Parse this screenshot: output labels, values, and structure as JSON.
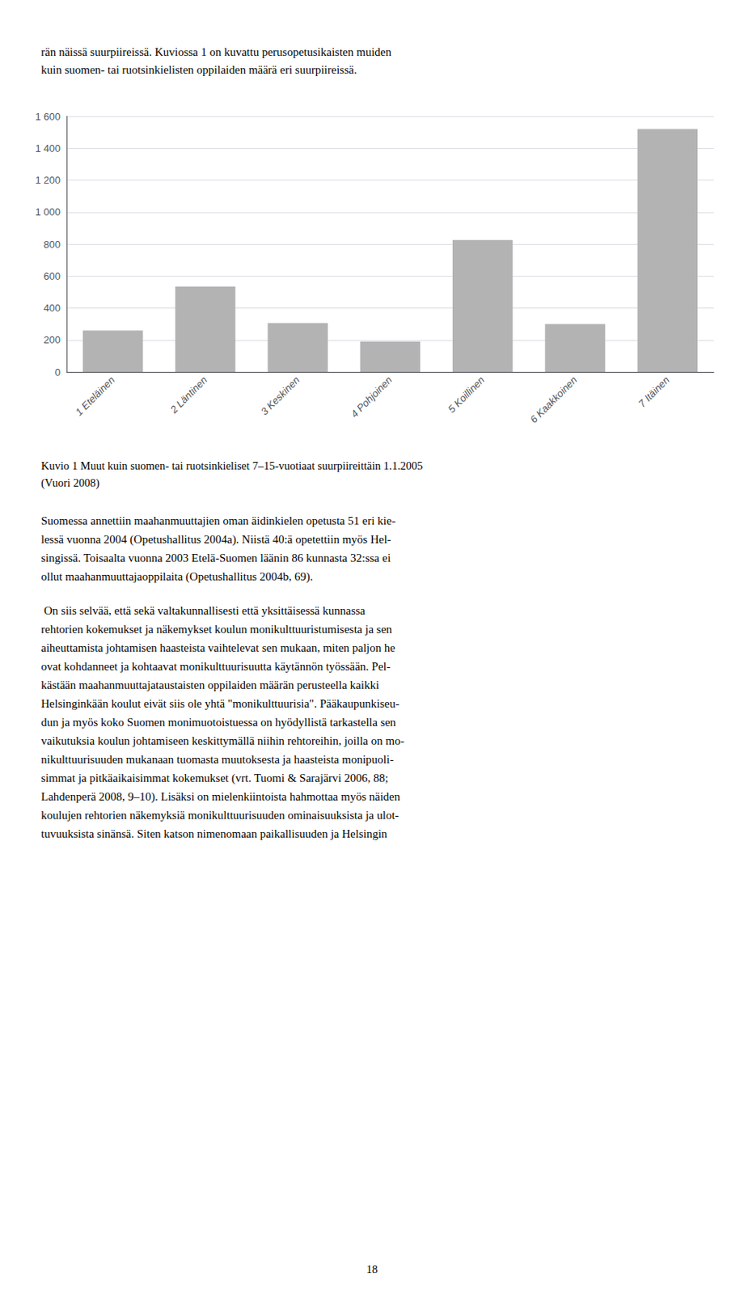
{
  "chart_data": {
    "type": "bar",
    "categories": [
      "1 Eteläinen",
      "2 Läntinen",
      "3 Keskinen",
      "4 Pohjoinen",
      "5 Koillinen",
      "6 Kaakkoinen",
      "7 Itäinen"
    ],
    "values": [
      260,
      535,
      305,
      190,
      825,
      300,
      1520
    ],
    "color": "#b3b3b3",
    "ylim": [
      0,
      1600
    ],
    "yticks": [
      0,
      200,
      400,
      600,
      800,
      {
        "value": 1000,
        "label": "1 000"
      },
      {
        "value": 1200,
        "label": "1 200"
      },
      {
        "value": 1400,
        "label": "1 400"
      },
      {
        "value": 1600,
        "label": "1 600"
      }
    ],
    "grid": true
  },
  "page_text": {
    "header": "rän näissä suurpiireissä. Kuviossa 1 on kuvattu perusopetusikaisten muiden\nkuin suomen- tai ruotsinkielisten oppilaiden määrä eri suurpiireissä.",
    "caption": "Kuvio 1 Muut kuin suomen- tai ruotsinkieliset 7–15-vuotiaat suurpiireittäin 1.1.2005\n(Vuori 2008)",
    "body": [
      "Suomessa annettiin maahanmuuttajien oman äidinkielen opetusta 51 eri kie-\nlessä vuonna 2004 (Opetushallitus 2004a). Niistä 40:ä opetettiin myös Hel-\nsingissä. Toisaalta vuonna 2003 Etelä-Suomen läänin 86 kunnasta 32:ssa ei\nollut maahanmuuttajaoppilaita (Opetushallitus 2004b, 69).",
      "\tOn siis selvää, että sekä valtakunnallisesti että yksittäisessä kunnassa\nrehtorien kokemukset ja näkemykset koulun monikulttuuristumisesta ja sen\naiheuttamista johtamisen haasteista vaihtelevat sen mukaan, miten paljon he\novat kohdanneet ja kohtaavat monikulttuurisuutta käytännön työssään. Pel-\nkästään maahanmuuttajataustaisten oppilaiden määrän perusteella kaikki\nHelsinginkään koulut eivät siis ole yhtä \"monikulttuurisia\". Pääkaupunkiseu-\ndun ja myös koko Suomen monimuotoistuessa on hyödyllistä tarkastella sen\nvaikutuksia koulun johtamiseen keskittymällä niihin rehtoreihin, joilla on mo-\nnikulttuurisuuden mukanaan tuomasta muutoksesta ja haasteista monipuoli-\nsimmat ja pitkäaikaisimmat kokemukset (vrt. Tuomi & Sarajärvi 2006, 88;\nLahdenperä 2008, 9–10). Lisäksi on mielenkiintoista hahmottaa myös näiden\nkoulujen rehtorien näkemyksiä monikulttuurisuuden ominaisuuksista ja ulot-\ntuvuuksista sinänsä. Siten katson nimenomaan paikallisuuden ja Helsingin"
    ],
    "page_number": "18"
  }
}
